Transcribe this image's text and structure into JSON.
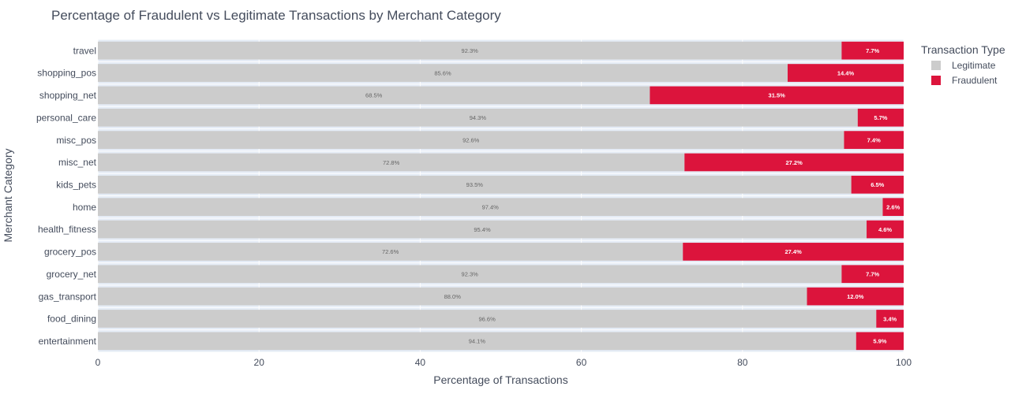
{
  "chart_data": {
    "type": "bar",
    "orientation": "horizontal",
    "stacked": true,
    "title": "Percentage of Fraudulent vs Legitimate Transactions by Merchant Category",
    "xlabel": "Percentage of Transactions",
    "ylabel": "Merchant Category",
    "xlim": [
      0,
      100
    ],
    "xticks": [
      0,
      20,
      40,
      60,
      80,
      100
    ],
    "categories": [
      "travel",
      "shopping_pos",
      "shopping_net",
      "personal_care",
      "misc_pos",
      "misc_net",
      "kids_pets",
      "home",
      "health_fitness",
      "grocery_pos",
      "grocery_net",
      "gas_transport",
      "food_dining",
      "entertainment"
    ],
    "series": [
      {
        "name": "Legitimate",
        "color": "#cccccc",
        "values": [
          92.3,
          85.6,
          68.5,
          94.3,
          92.6,
          72.8,
          93.5,
          97.4,
          95.4,
          72.6,
          92.3,
          88.0,
          96.6,
          94.1
        ],
        "labels": [
          "92.3%",
          "85.6%",
          "68.5%",
          "94.3%",
          "92.6%",
          "72.8%",
          "93.5%",
          "97.4%",
          "95.4%",
          "72.6%",
          "92.3%",
          "88.0%",
          "96.6%",
          "94.1%"
        ]
      },
      {
        "name": "Fraudulent",
        "color": "#dc143c",
        "values": [
          7.7,
          14.4,
          31.5,
          5.7,
          7.4,
          27.2,
          6.5,
          2.6,
          4.6,
          27.4,
          7.7,
          12.0,
          3.4,
          5.9
        ],
        "labels": [
          "7.7%",
          "14.4%",
          "31.5%",
          "5.7%",
          "7.4%",
          "27.2%",
          "6.5%",
          "2.6%",
          "4.6%",
          "27.4%",
          "7.7%",
          "12.0%",
          "3.4%",
          "5.9%"
        ]
      }
    ],
    "legend": {
      "title": "Transaction Type",
      "position": "top-right"
    },
    "grid": true,
    "plot_background": "#e5ecf6"
  }
}
